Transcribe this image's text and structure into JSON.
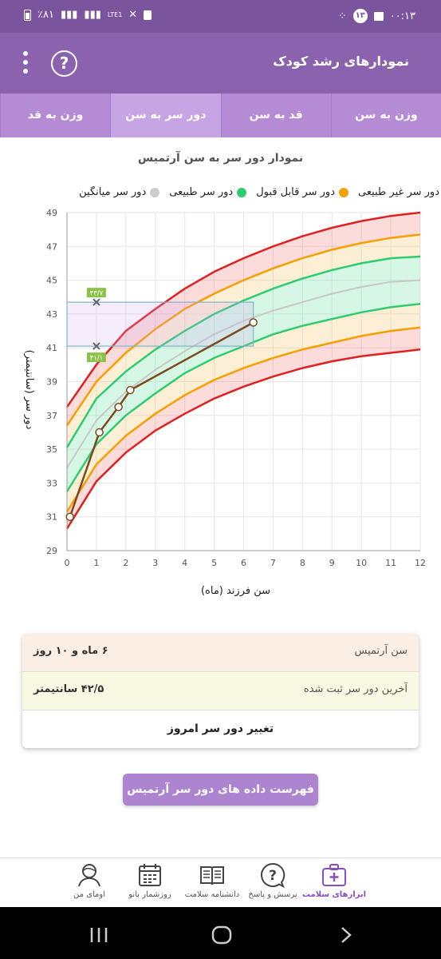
{
  "status_bar": {
    "time": "۰۰:۱۳",
    "notification_count": "۱۳",
    "battery": "٪۸۱",
    "network": "LTE1"
  },
  "app_bar": {
    "title": "نمودارهای رشد کودک",
    "help_icon": "help-circle-icon",
    "menu_icon": "more-vert-icon"
  },
  "tabs": [
    {
      "label": "وزن به سن",
      "active": false
    },
    {
      "label": "قد به سن",
      "active": false
    },
    {
      "label": "دور سر به سن",
      "active": true
    },
    {
      "label": "وزن به قد",
      "active": false
    }
  ],
  "chart_title": "نمودار دور سر به سن آرتمیس",
  "legend": [
    {
      "label": "دور سر غیر طبیعی",
      "color": "#e02020"
    },
    {
      "label": "دور سر قابل قبول",
      "color": "#f5a000"
    },
    {
      "label": "دور سر طبیعی",
      "color": "#2ecc71"
    },
    {
      "label": "دور سر میانگین",
      "color": "#cccccc"
    }
  ],
  "chart_data": {
    "type": "line",
    "xlabel": "سن فرزند (ماه)",
    "ylabel": "دور سر (سانتیمتر)",
    "xlim": [
      0,
      12
    ],
    "ylim": [
      29,
      49
    ],
    "x_ticks": [
      0,
      1,
      2,
      3,
      4,
      5,
      6,
      7,
      8,
      9,
      10,
      11,
      12
    ],
    "y_ticks": [
      29,
      31,
      33,
      35,
      37,
      39,
      41,
      43,
      45,
      47,
      49
    ],
    "x": [
      0,
      1,
      2,
      3,
      4,
      5,
      6,
      7,
      8,
      9,
      10,
      11,
      12
    ],
    "series": [
      {
        "name": "دور سر غیر طبیعی",
        "role": "lower",
        "color": "#e02020",
        "values": [
          30.3,
          33.1,
          34.8,
          36.1,
          37.1,
          38.0,
          38.7,
          39.3,
          39.8,
          40.2,
          40.5,
          40.7,
          40.9
        ]
      },
      {
        "name": "دور سر قابل قبول",
        "role": "lower",
        "color": "#f5a000",
        "values": [
          31.3,
          34.1,
          35.8,
          37.1,
          38.2,
          39.1,
          39.8,
          40.4,
          40.9,
          41.3,
          41.7,
          42.0,
          42.2
        ]
      },
      {
        "name": "دور سر طبیعی",
        "role": "lower",
        "color": "#2ecc71",
        "values": [
          32.5,
          35.3,
          37.0,
          38.3,
          39.5,
          40.4,
          41.1,
          41.8,
          42.3,
          42.7,
          43.1,
          43.4,
          43.6
        ]
      },
      {
        "name": "دور سر میانگین",
        "color": "#c8c8c8",
        "values": [
          33.9,
          36.7,
          38.4,
          39.7,
          40.8,
          41.8,
          42.6,
          43.2,
          43.7,
          44.2,
          44.6,
          44.9,
          45.0
        ]
      },
      {
        "name": "دور سر طبیعی",
        "role": "upper",
        "color": "#2ecc71",
        "values": [
          35.1,
          38.0,
          39.6,
          40.9,
          42.0,
          43.0,
          43.8,
          44.5,
          45.1,
          45.6,
          46.0,
          46.3,
          46.4
        ]
      },
      {
        "name": "دور سر قابل قبول",
        "role": "upper",
        "color": "#f5a000",
        "values": [
          36.4,
          39.0,
          40.7,
          42.1,
          43.3,
          44.2,
          45.0,
          45.7,
          46.3,
          46.8,
          47.2,
          47.5,
          47.7
        ]
      },
      {
        "name": "دور سر غیر طبیعی",
        "role": "upper",
        "color": "#e02020",
        "values": [
          37.5,
          40.0,
          42.0,
          43.3,
          44.5,
          45.5,
          46.3,
          47.0,
          47.6,
          48.1,
          48.5,
          48.8,
          49.0
        ]
      }
    ],
    "child_series": {
      "color": "#7a4a20",
      "points": [
        {
          "x": 0.1,
          "y": 31.0
        },
        {
          "x": 1.1,
          "y": 36.0
        },
        {
          "x": 1.75,
          "y": 37.5
        },
        {
          "x": 2.15,
          "y": 38.5
        },
        {
          "x": 6.33,
          "y": 42.5
        }
      ]
    },
    "selection": {
      "x": 1.0,
      "y_low": 41.1,
      "y_high": 43.7,
      "x_end": 6.33,
      "label_low": "۴۱/۱",
      "label_high": "۴۳/۷"
    }
  },
  "info_card": {
    "age_label": "سن آرتمیس",
    "age_value": "۶ ماه و ۱۰ روز",
    "last_label": "آخرین دور سر ثبت شده",
    "last_value": "۴۲/۵ سانتیمتر",
    "action_label": "تغییر دور سر امروز"
  },
  "list_button_label": "فهرست داده های دور سر آرتمیس",
  "bottom_nav": [
    {
      "label": "ابزارهای سلامت",
      "icon": "medical-kit-icon",
      "active": true
    },
    {
      "label": "پرسش و پاسخ",
      "icon": "question-bubble-icon",
      "active": false
    },
    {
      "label": "دانشنامه سلامت",
      "icon": "book-icon",
      "active": false
    },
    {
      "label": "روزشمار بانو",
      "icon": "calendar-icon",
      "active": false
    },
    {
      "label": "اومای من",
      "icon": "profile-icon",
      "active": false
    }
  ],
  "system_nav": {
    "recents_icon": "recents-icon",
    "home_icon": "home-icon",
    "back_icon": "back-icon"
  }
}
